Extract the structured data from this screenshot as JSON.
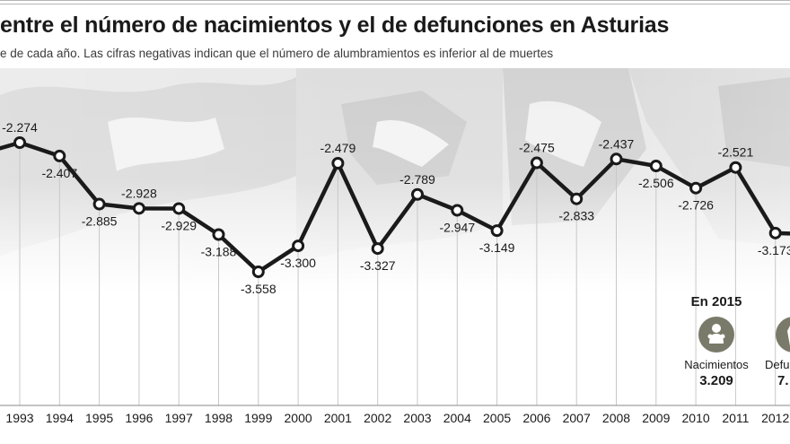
{
  "title": "entre el número de nacimientos y el de defunciones en Asturias",
  "subtitle": "e de cada año. Las cifras negativas indican que el número de alumbramientos es inferior al de muertes",
  "inset": {
    "heading": "En 2015",
    "items": [
      {
        "label": "Nacimientos",
        "value": "3.209",
        "icon": "baby-icon"
      },
      {
        "label": "Defu",
        "value": "7.",
        "icon": "coffin-icon"
      }
    ]
  },
  "colors": {
    "line": "#1a1a1a",
    "grid": "#c8c8c8",
    "photo": "#e6e6e6",
    "icon_circle": "#7a7a6a"
  },
  "chart_data": {
    "type": "line",
    "title": "entre el número de nacimientos y el de defunciones en Asturias",
    "xlabel": "",
    "ylabel": "",
    "categories": [
      "1993",
      "1994",
      "1995",
      "1996",
      "1997",
      "1998",
      "1999",
      "2000",
      "2001",
      "2002",
      "2003",
      "2004",
      "2005",
      "2006",
      "2007",
      "2008",
      "2009",
      "2010",
      "2011",
      "2012"
    ],
    "values": [
      -2274,
      -2407,
      -2885,
      -2928,
      -2929,
      -3188,
      -3558,
      -3300,
      -2479,
      -3327,
      -2789,
      -2947,
      -3149,
      -2475,
      -2833,
      -2437,
      -2506,
      -2726,
      -2521,
      -3173
    ],
    "data_labels": [
      "-2.274",
      "-2.407",
      "-2.885",
      "-2.928",
      "-2.929",
      "-3.188",
      "-3.558",
      "-3.300",
      "-2.479",
      "-3.327",
      "-2.789",
      "-2.947",
      "-3.149",
      "-2.475",
      "-2.833",
      "-2.437",
      "-2.506",
      "-2.726",
      "-2.521",
      "-3.173"
    ],
    "label_position": [
      "above",
      "below",
      "below",
      "above",
      "below",
      "below",
      "below",
      "below",
      "above",
      "below",
      "above",
      "below",
      "below",
      "above",
      "below",
      "above",
      "below",
      "below",
      "above",
      "below"
    ],
    "grid": true
  }
}
